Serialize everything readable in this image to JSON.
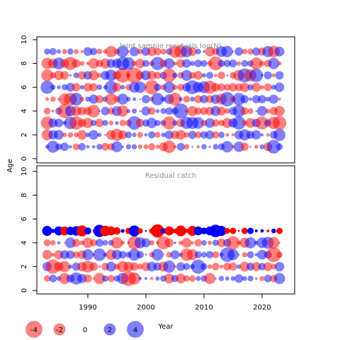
{
  "colors": {
    "negative": "#ff0000",
    "positive": "#0000ff",
    "frame": "#000000",
    "title": "#8c8c8c"
  },
  "axes": {
    "xlabel": "Year",
    "ylabel": "Age",
    "xticks": [
      "1990",
      "2000",
      "2010",
      "2020"
    ],
    "yticks": [
      "0",
      "2",
      "4",
      "6",
      "8",
      "10"
    ]
  },
  "legend": {
    "position": "bottom-left",
    "items": [
      {
        "label": "-4",
        "value": -4
      },
      {
        "label": "-2",
        "value": -2
      },
      {
        "label": "0",
        "value": 0
      },
      {
        "label": "2",
        "value": 2
      },
      {
        "label": "4",
        "value": 4
      }
    ]
  },
  "chart_data": [
    {
      "type": "bubble",
      "title": "Joint sample residuals log(N)",
      "xlabel": "",
      "ylabel": "Age",
      "xlim": [
        1982,
        2024.5
      ],
      "ylim": [
        -0.5,
        10.5
      ],
      "years": [
        1983,
        2023
      ],
      "ages": [
        1,
        2,
        3,
        4,
        5,
        6,
        7,
        8,
        9
      ],
      "residuals": "one residual per year (1983-2023) and age (1-9); bubble area proportional to |residual|, red = negative, blue = positive (semi-transparent)",
      "grid": false
    },
    {
      "type": "bubble",
      "title": "Residual catch",
      "xlabel": "Year",
      "ylabel": "",
      "xlim": [
        1982,
        2024.5
      ],
      "ylim": [
        -0.5,
        10.5
      ],
      "years": [
        1983,
        2023
      ],
      "ages": [
        1,
        2,
        3,
        4,
        5
      ],
      "residuals": "one residual per year (1983-2023) and age (1-5); ages 1-4 semi-transparent, age 5 opaque; red = negative, blue = positive",
      "grid": false
    }
  ]
}
